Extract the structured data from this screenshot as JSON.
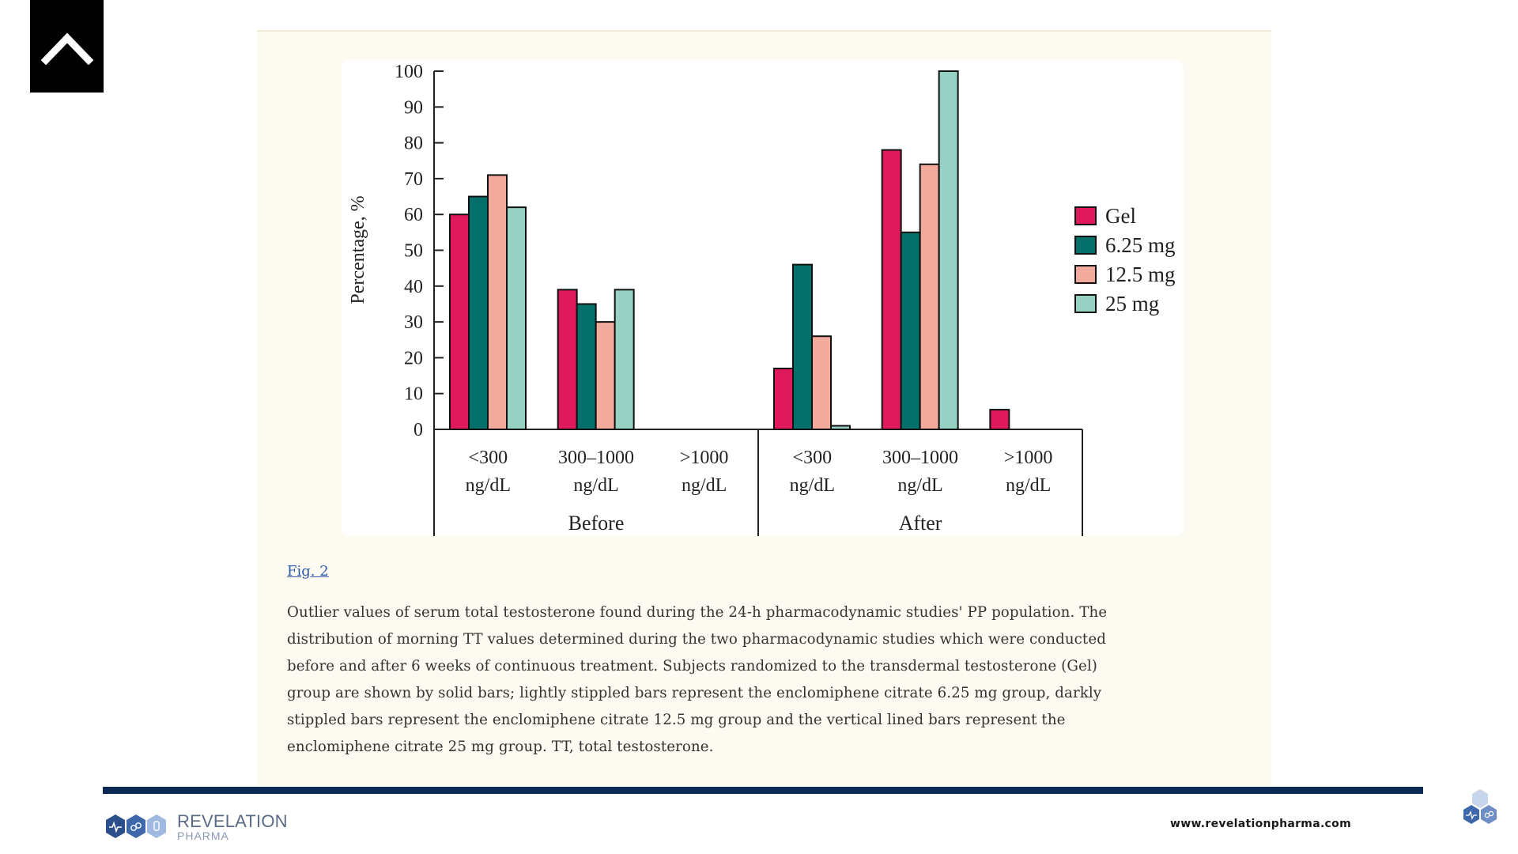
{
  "nav": {
    "up_icon": "chevron-up-icon"
  },
  "chart_data": {
    "type": "bar",
    "ylabel": "Percentage, %",
    "ylim": [
      0,
      100
    ],
    "yticks": [
      0,
      10,
      20,
      30,
      40,
      50,
      60,
      70,
      80,
      90,
      100
    ],
    "groups": [
      {
        "label": "Before",
        "categories": [
          "<300 ng/dL",
          "300–1000 ng/dL",
          ">1000 ng/dL"
        ]
      },
      {
        "label": "After",
        "categories": [
          "<300 ng/dL",
          "300–1000 ng/dL",
          ">1000 ng/dL"
        ]
      }
    ],
    "category_lines": [
      {
        "line1": "<300",
        "line2": "ng/dL"
      },
      {
        "line1": "300–1000",
        "line2": "ng/dL"
      },
      {
        "line1": ">1000",
        "line2": "ng/dL"
      },
      {
        "line1": "<300",
        "line2": "ng/dL"
      },
      {
        "line1": "300–1000",
        "line2": "ng/dL"
      },
      {
        "line1": ">1000",
        "line2": "ng/dL"
      }
    ],
    "series": [
      {
        "name": "Gel",
        "color": "#e0185c",
        "values": [
          60,
          39,
          0,
          17,
          78,
          5.5
        ]
      },
      {
        "name": "6.25 mg",
        "color": "#05706a",
        "values": [
          65,
          35,
          0,
          46,
          55,
          0
        ]
      },
      {
        "name": "12.5 mg",
        "color": "#f2aa9d",
        "values": [
          71,
          30,
          0,
          26,
          74,
          0
        ]
      },
      {
        "name": "25 mg",
        "color": "#97d1c4",
        "values": [
          62,
          39,
          0,
          1,
          100,
          0
        ]
      }
    ],
    "legend_position": "right",
    "grid": false
  },
  "figure": {
    "link": "Fig. 2",
    "caption_lines": [
      "Outlier values of serum total testosterone found during the 24-h pharmacodynamic studies' PP population. The",
      "distribution of morning TT values determined during the two pharmacodynamic studies which were conducted",
      "before and after 6 weeks of continuous treatment. Subjects randomized to the transdermal testosterone (Gel)",
      "group are shown by solid bars; lightly stippled bars represent the enclomiphene citrate 6.25 mg group, darkly",
      "stippled bars represent the enclomiphene citrate 12.5 mg group and the vertical lined bars represent the",
      "enclomiphene citrate 25 mg group. TT, total testosterone."
    ]
  },
  "footer": {
    "brand_line1": "REVELATION",
    "brand_line2": "PHARMA",
    "website": "www.revelationpharma.com",
    "accent_color": "#0d2a57"
  }
}
